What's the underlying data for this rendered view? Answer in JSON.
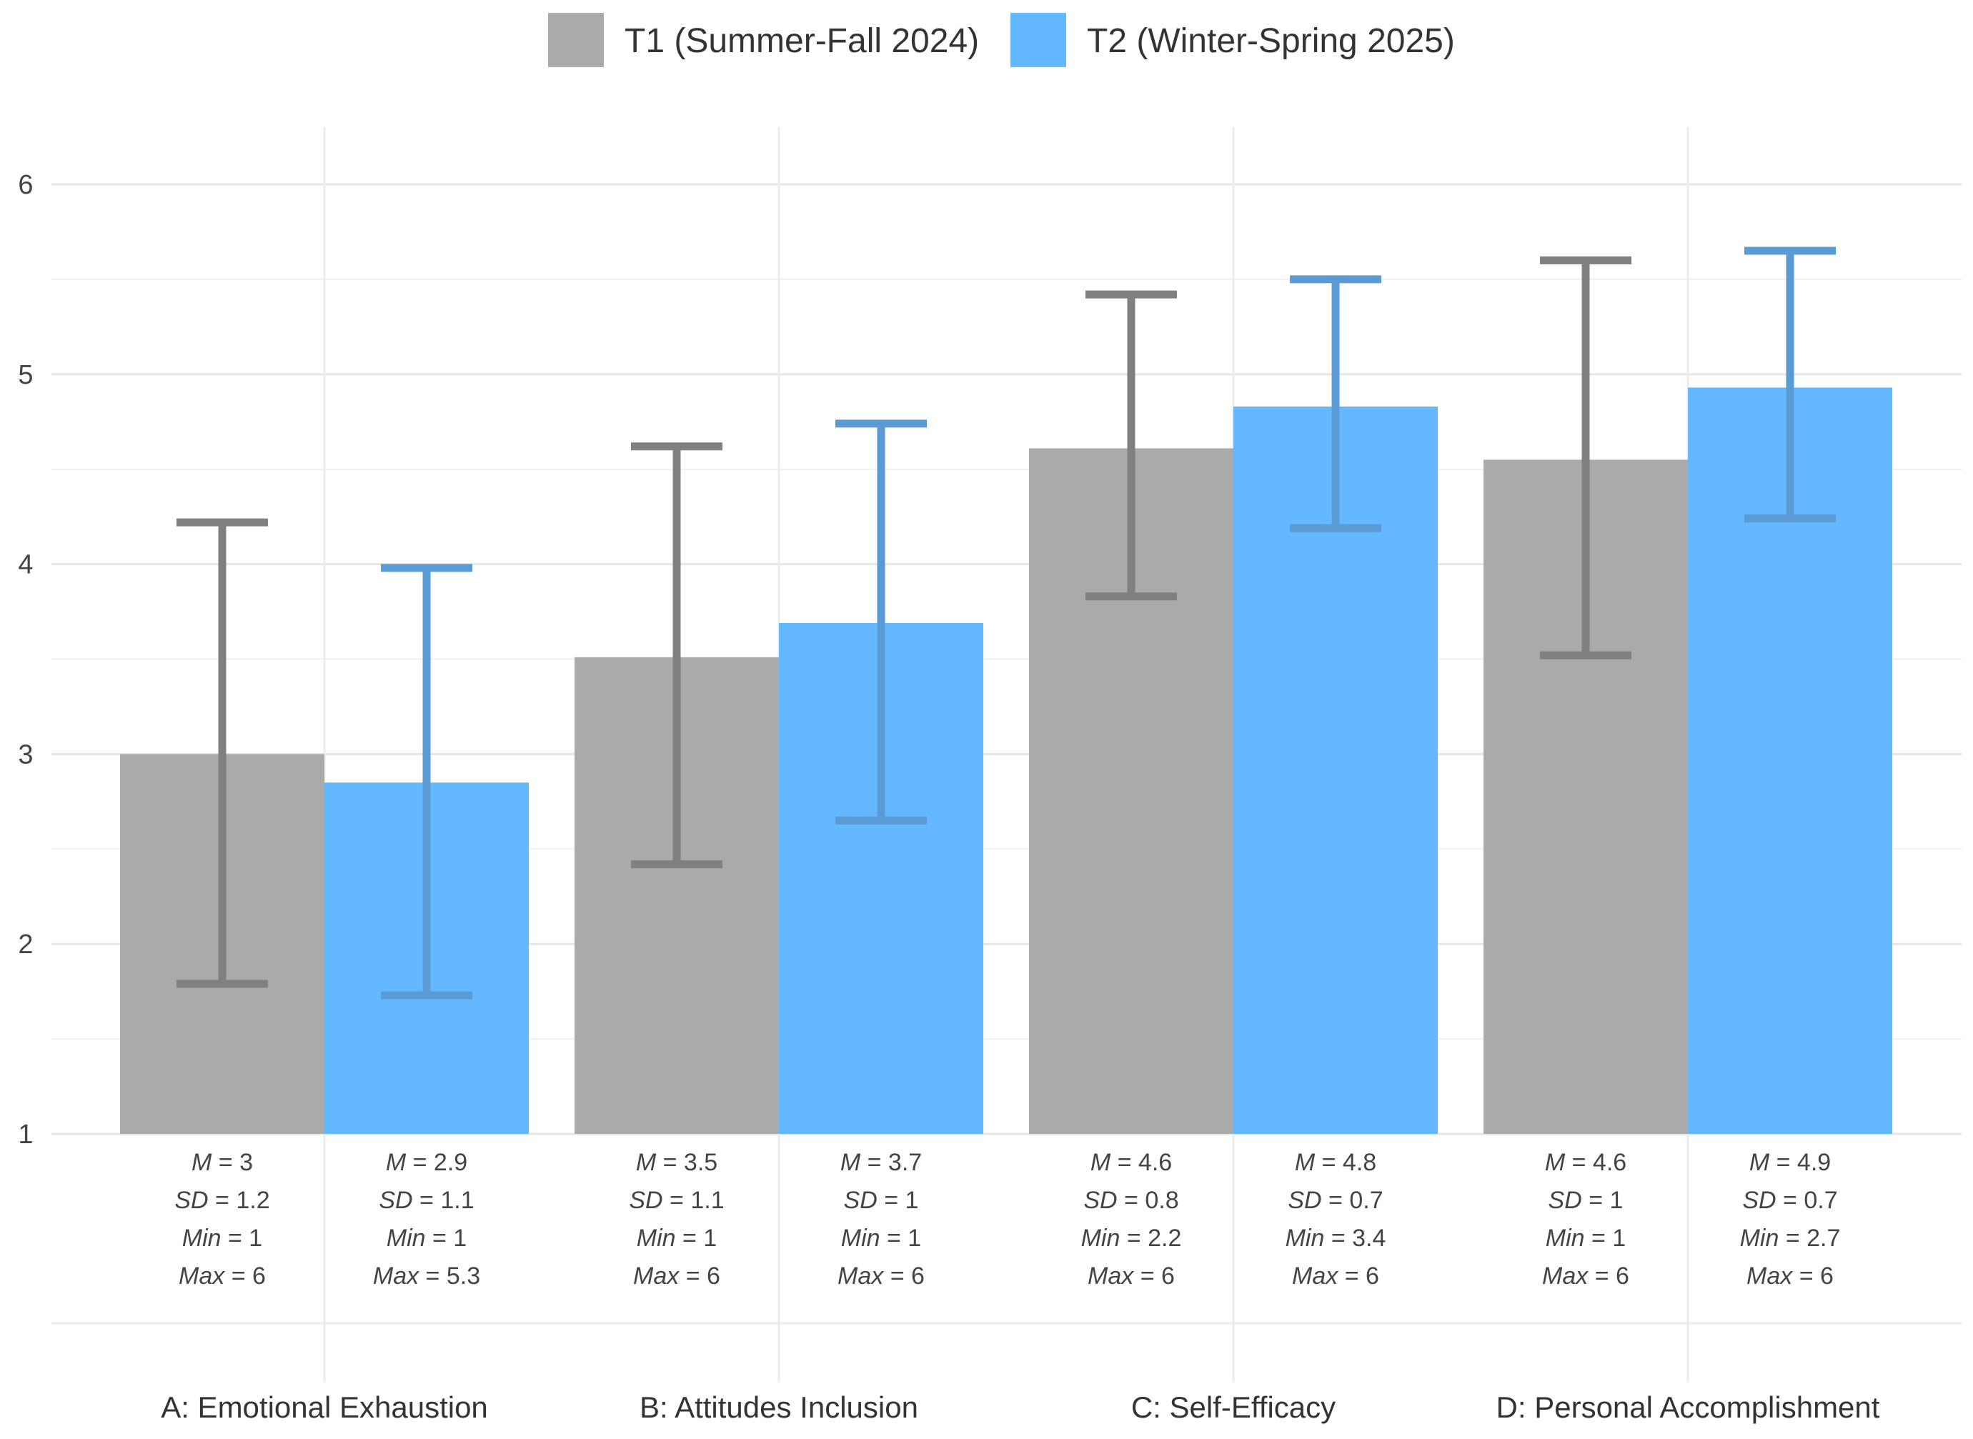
{
  "chart_data": {
    "type": "bar",
    "categories": [
      "A: Emotional Exhaustion",
      "B: Attitudes Inclusion",
      "C: Self-Efficacy",
      "D: Personal Accomplishment"
    ],
    "series": [
      {
        "name": "T1 (Summer-Fall 2024)",
        "color": "#aaaaaa",
        "error_color": "#808080",
        "values": [
          3.0,
          3.51,
          4.61,
          4.55
        ],
        "error_low": [
          1.79,
          2.42,
          3.83,
          3.52
        ],
        "error_high": [
          4.22,
          4.62,
          5.42,
          5.6
        ],
        "stats": [
          {
            "M": "3",
            "SD": "1.2",
            "Min": "1",
            "Max": "6"
          },
          {
            "M": "3.5",
            "SD": "1.1",
            "Min": "1",
            "Max": "6"
          },
          {
            "M": "4.6",
            "SD": "0.8",
            "Min": "2.2",
            "Max": "6"
          },
          {
            "M": "4.6",
            "SD": "1",
            "Min": "1",
            "Max": "6"
          }
        ]
      },
      {
        "name": "T2 (Winter-Spring 2025)",
        "color": "#63b8ff",
        "error_color": "#5a9bd5",
        "values": [
          2.85,
          3.69,
          4.83,
          4.93
        ],
        "error_low": [
          1.73,
          2.65,
          4.19,
          4.24
        ],
        "error_high": [
          3.98,
          4.74,
          5.5,
          5.65
        ],
        "stats": [
          {
            "M": "2.9",
            "SD": "1.1",
            "Min": "1",
            "Max": "5.3"
          },
          {
            "M": "3.7",
            "SD": "1",
            "Min": "1",
            "Max": "6"
          },
          {
            "M": "4.8",
            "SD": "0.7",
            "Min": "3.4",
            "Max": "6"
          },
          {
            "M": "4.9",
            "SD": "0.7",
            "Min": "2.7",
            "Max": "6"
          }
        ]
      }
    ],
    "ylim": [
      1,
      6
    ],
    "yticks": [
      "1",
      "2",
      "3",
      "4",
      "5",
      "6"
    ],
    "stat_keys": {
      "M": "M",
      "SD": "SD",
      "Min": "Min",
      "Max": "Max"
    },
    "legend_position": "top",
    "grid": true
  }
}
